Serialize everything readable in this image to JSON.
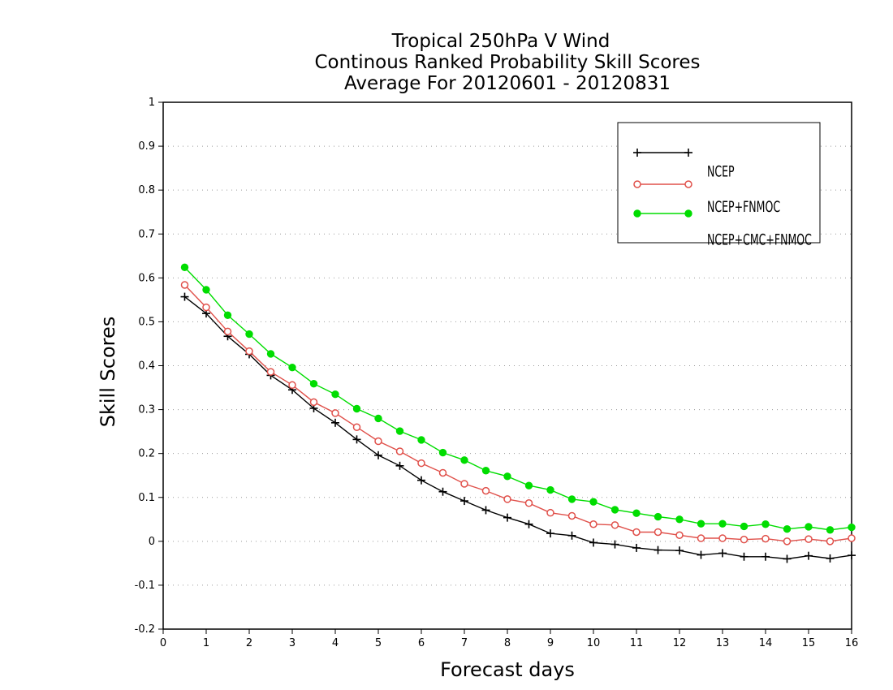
{
  "chart_data": {
    "type": "line",
    "title_lines": [
      "Tropical 250hPa V Wind",
      "Continous Ranked Probability Skill Scores",
      "Average For 20120601 - 20120831"
    ],
    "xlabel": "Forecast days",
    "ylabel": "Skill Scores",
    "xlim": [
      0,
      16
    ],
    "ylim": [
      -0.2,
      1
    ],
    "xticks": [
      "0",
      "1",
      "2",
      "3",
      "4",
      "5",
      "6",
      "7",
      "8",
      "9",
      "10",
      "11",
      "12",
      "13",
      "14",
      "15",
      "16"
    ],
    "yticks": [
      "-0.2",
      "-0.1",
      "0",
      "0.1",
      "0.2",
      "0.3",
      "0.4",
      "0.5",
      "0.6",
      "0.7",
      "0.8",
      "0.9",
      "1"
    ],
    "grid": "horizontal dotted",
    "legend_position": "top-right",
    "x": [
      0.5,
      1,
      1.5,
      2,
      2.5,
      3,
      3.5,
      4,
      4.5,
      5,
      5.5,
      6,
      6.5,
      7,
      7.5,
      8,
      8.5,
      9,
      9.5,
      10,
      10.5,
      11,
      11.5,
      12,
      12.5,
      13,
      13.5,
      14,
      14.5,
      15,
      15.5,
      16
    ],
    "series": [
      {
        "name": "NCEP",
        "color": "#000000",
        "marker": "plus",
        "values": [
          0.557,
          0.519,
          0.467,
          0.426,
          0.378,
          0.345,
          0.303,
          0.27,
          0.232,
          0.196,
          0.172,
          0.139,
          0.113,
          0.092,
          0.071,
          0.054,
          0.039,
          0.018,
          0.013,
          -0.003,
          -0.007,
          -0.015,
          -0.02,
          -0.021,
          -0.031,
          -0.027,
          -0.035,
          -0.035,
          -0.04,
          -0.033,
          -0.039,
          -0.032
        ]
      },
      {
        "name": "NCEP+FNMOC",
        "color": "#e0504a",
        "marker": "open-circle",
        "values": [
          0.584,
          0.533,
          0.478,
          0.433,
          0.386,
          0.356,
          0.317,
          0.292,
          0.26,
          0.228,
          0.205,
          0.178,
          0.156,
          0.131,
          0.115,
          0.096,
          0.087,
          0.065,
          0.058,
          0.039,
          0.037,
          0.021,
          0.021,
          0.014,
          0.007,
          0.007,
          0.004,
          0.006,
          0.0,
          0.005,
          0.0,
          0.007
        ]
      },
      {
        "name": "NCEP+CMC+FNMOC",
        "color": "#00dd00",
        "marker": "filled-circle",
        "values": [
          0.624,
          0.573,
          0.515,
          0.472,
          0.427,
          0.396,
          0.359,
          0.335,
          0.302,
          0.28,
          0.251,
          0.231,
          0.202,
          0.185,
          0.161,
          0.148,
          0.127,
          0.117,
          0.096,
          0.09,
          0.072,
          0.064,
          0.056,
          0.05,
          0.04,
          0.04,
          0.034,
          0.039,
          0.028,
          0.033,
          0.026,
          0.032
        ]
      }
    ]
  }
}
